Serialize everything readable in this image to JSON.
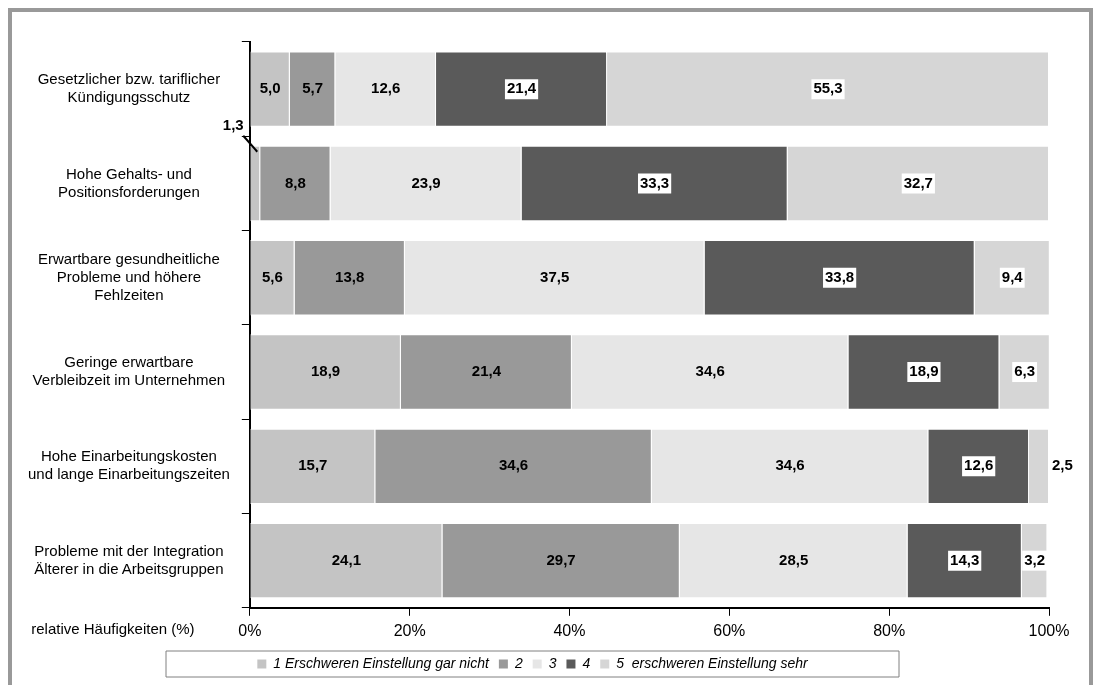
{
  "chart_data": {
    "type": "bar",
    "orientation": "horizontal",
    "stacked": true,
    "xlabel": "relative Häufigkeiten (%)",
    "categories": [
      "Gesetzlicher bzw. tariflicher\nKündigungsschutz",
      "Hohe Gehalts- und\nPositionsforderungen",
      "Erwartbare gesundheitliche\nProbleme und höhere\nFehlzeiten",
      "Geringe erwartbare\nVerbleibzeit im Unternehmen",
      "Hohe Einarbeitungskosten\nund lange Einarbeitungszeiten",
      "Probleme mit der Integration\nÄlterer in die Arbeitsgruppen"
    ],
    "series": [
      {
        "name": "1 Erschweren Einstellung gar nicht",
        "color": "#c4c4c4",
        "values": [
          5.0,
          1.3,
          5.6,
          18.9,
          15.7,
          24.1
        ],
        "value_labels": [
          "5,0",
          "1,3",
          "5,6",
          "18,9",
          "15,7",
          "24,1"
        ]
      },
      {
        "name": "2",
        "color": "#999999",
        "values": [
          5.7,
          8.8,
          13.8,
          21.4,
          34.6,
          29.7
        ],
        "value_labels": [
          "5,7",
          "8,8",
          "13,8",
          "21,4",
          "34,6",
          "29,7"
        ]
      },
      {
        "name": "3",
        "color": "#e6e6e6",
        "values": [
          12.6,
          23.9,
          37.5,
          34.6,
          34.6,
          28.5
        ],
        "value_labels": [
          "12,6",
          "23,9",
          "37,5",
          "34,6",
          "34,6",
          "28,5"
        ]
      },
      {
        "name": "4",
        "color": "#5a5a5a",
        "values": [
          21.4,
          33.3,
          33.8,
          18.9,
          12.6,
          14.3
        ],
        "value_labels": [
          "21,4",
          "33,3",
          "33,8",
          "18,9",
          "12,6",
          "14,3"
        ]
      },
      {
        "name": "5  erschweren Einstellung sehr",
        "color": "#d6d6d6",
        "values": [
          55.3,
          32.7,
          9.4,
          6.3,
          2.5,
          3.2
        ],
        "value_labels": [
          "55,3",
          "32,7",
          "9,4",
          "6,3",
          "2,5",
          "3,2"
        ]
      }
    ],
    "xlim": [
      0,
      100
    ],
    "xticks": [
      {
        "value": 0,
        "label": "0%"
      },
      {
        "value": 20,
        "label": "20%"
      },
      {
        "value": 40,
        "label": "40%"
      },
      {
        "value": 60,
        "label": "60%"
      },
      {
        "value": 80,
        "label": "80%"
      },
      {
        "value": 100,
        "label": "100%"
      }
    ],
    "grid": false,
    "legend": "bottom"
  }
}
